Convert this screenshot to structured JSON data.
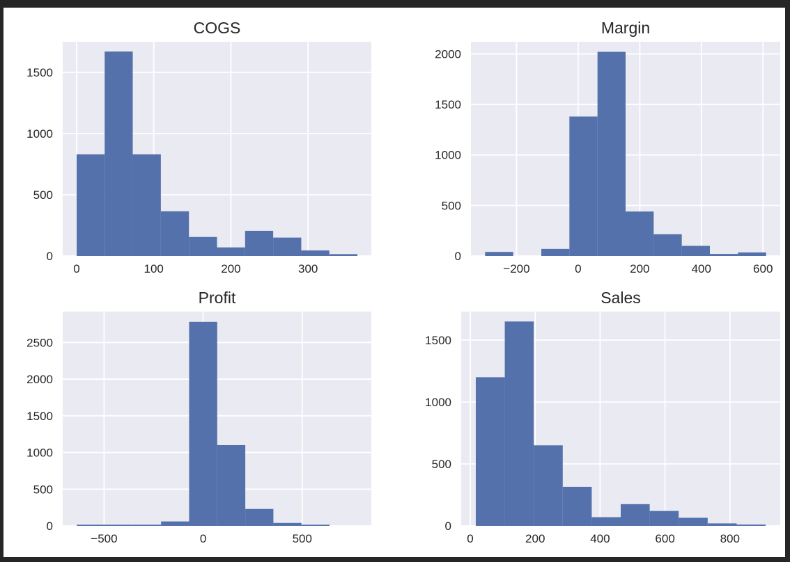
{
  "colors": {
    "figure_background": "#ffffff",
    "plot_background": "#eaeaf2",
    "grid": "#ffffff",
    "bar": "#5471ab",
    "text": "#262626",
    "frame": "#262626"
  },
  "chart_data": [
    {
      "type": "bar",
      "title": "COGS",
      "xlabel": "",
      "ylabel": "",
      "bin_edges": [
        0,
        36.4,
        72.8,
        109.2,
        145.6,
        182,
        218.4,
        254.8,
        291.2,
        327.6,
        364
      ],
      "values": [
        830,
        1670,
        830,
        365,
        155,
        70,
        205,
        150,
        45,
        15
      ],
      "xlim": [
        -18,
        382
      ],
      "ylim": [
        0,
        1750
      ],
      "xticks": [
        0,
        100,
        200,
        300
      ],
      "xtick_labels": [
        "0",
        "100",
        "200",
        "300"
      ],
      "yticks": [
        0,
        500,
        1000,
        1500
      ],
      "ytick_labels": [
        "0",
        "500",
        "1000",
        "1500"
      ],
      "grid": true
    },
    {
      "type": "bar",
      "title": "Margin",
      "xlabel": "",
      "ylabel": "",
      "bin_edges": [
        -302,
        -210.8,
        -119.6,
        -28.4,
        62.8,
        154,
        245.2,
        336.4,
        427.6,
        518.8,
        610
      ],
      "values": [
        40,
        0,
        70,
        1380,
        2020,
        440,
        215,
        100,
        20,
        35
      ],
      "xlim": [
        -348,
        656
      ],
      "ylim": [
        0,
        2120
      ],
      "xticks": [
        -200,
        0,
        200,
        400,
        600
      ],
      "xtick_labels": [
        "−200",
        "0",
        "200",
        "400",
        "600"
      ],
      "yticks": [
        0,
        500,
        1000,
        1500,
        2000
      ],
      "ytick_labels": [
        "0",
        "500",
        "1000",
        "1500",
        "2000"
      ],
      "grid": true
    },
    {
      "type": "bar",
      "title": "Profit",
      "xlabel": "",
      "ylabel": "",
      "bin_edges": [
        -638,
        -496.2,
        -354.4,
        -212.6,
        -70.8,
        71,
        212.8,
        354.6,
        496.4,
        638.2,
        778
      ],
      "values": [
        15,
        15,
        15,
        60,
        2780,
        1100,
        230,
        40,
        15,
        0
      ],
      "xlim": [
        -709,
        849
      ],
      "ylim": [
        0,
        2920
      ],
      "xticks": [
        -500,
        0,
        500
      ],
      "xtick_labels": [
        "−500",
        "0",
        "500"
      ],
      "yticks": [
        0,
        500,
        1000,
        1500,
        2000,
        2500
      ],
      "ytick_labels": [
        "0",
        "500",
        "1000",
        "1500",
        "2000",
        "2500"
      ],
      "grid": true
    },
    {
      "type": "bar",
      "title": "Sales",
      "xlabel": "",
      "ylabel": "",
      "bin_edges": [
        17,
        106.3,
        195.6,
        284.9,
        374.2,
        463.5,
        552.8,
        642.1,
        731.4,
        820.7,
        910
      ],
      "values": [
        1200,
        1650,
        650,
        315,
        70,
        175,
        120,
        65,
        20,
        10
      ],
      "xlim": [
        -28,
        955
      ],
      "ylim": [
        0,
        1730
      ],
      "xticks": [
        0,
        200,
        400,
        600,
        800
      ],
      "xtick_labels": [
        "0",
        "200",
        "400",
        "600",
        "800"
      ],
      "yticks": [
        0,
        500,
        1000,
        1500
      ],
      "ytick_labels": [
        "0",
        "500",
        "1000",
        "1500"
      ],
      "grid": true
    }
  ]
}
